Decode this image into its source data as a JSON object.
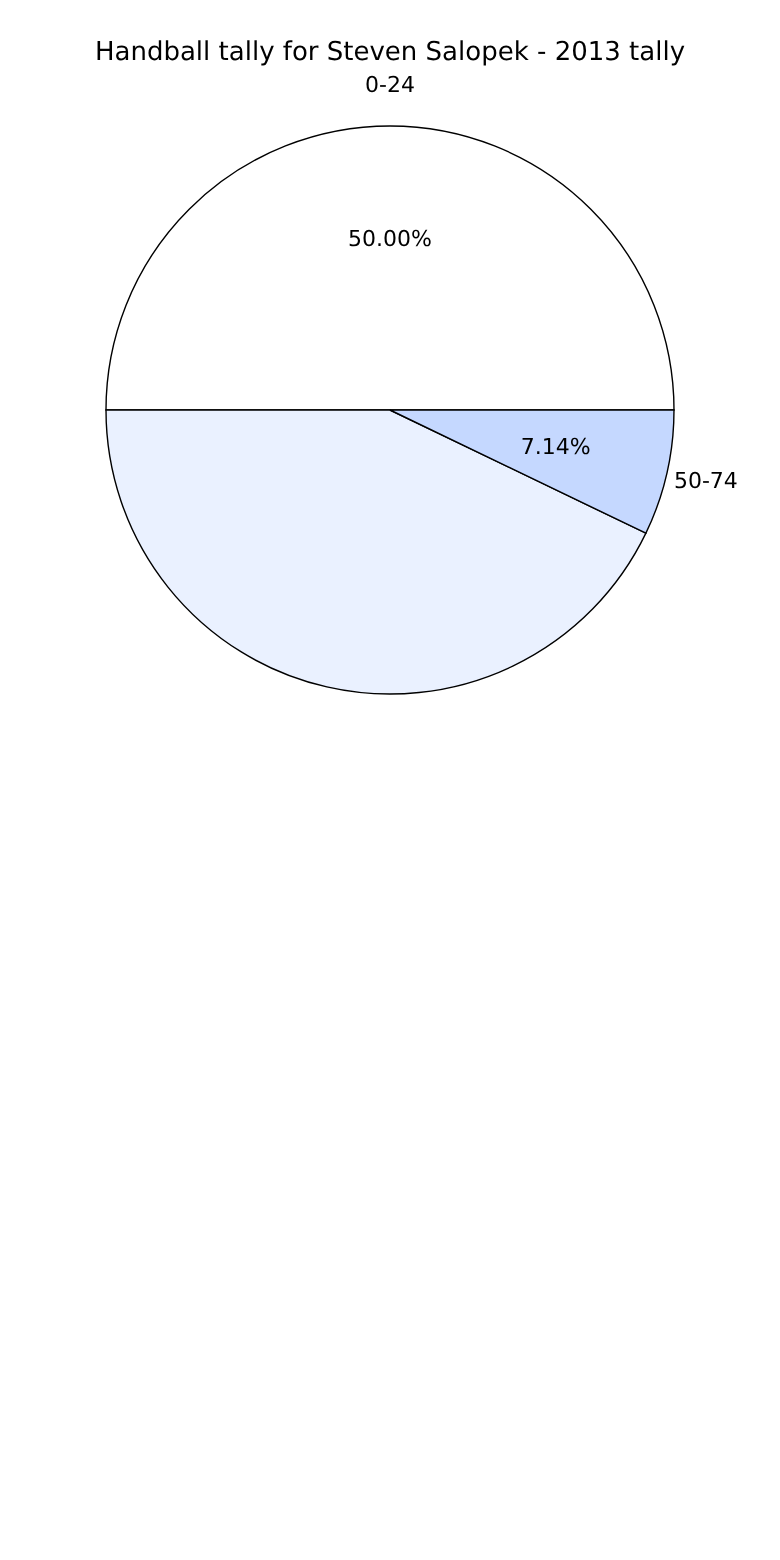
{
  "chart_data": {
    "type": "pie",
    "title": "Handball tally for Steven Salopek - 2013 tally",
    "categories": [
      "0-24",
      null,
      "50-74"
    ],
    "values": [
      50.0,
      42.86,
      7.14
    ],
    "colors": [
      "#ffffff",
      "#eaf1ff",
      "#c5d8ff"
    ],
    "value_labels": [
      "50.00%",
      null,
      "7.14%"
    ],
    "legend": false
  }
}
